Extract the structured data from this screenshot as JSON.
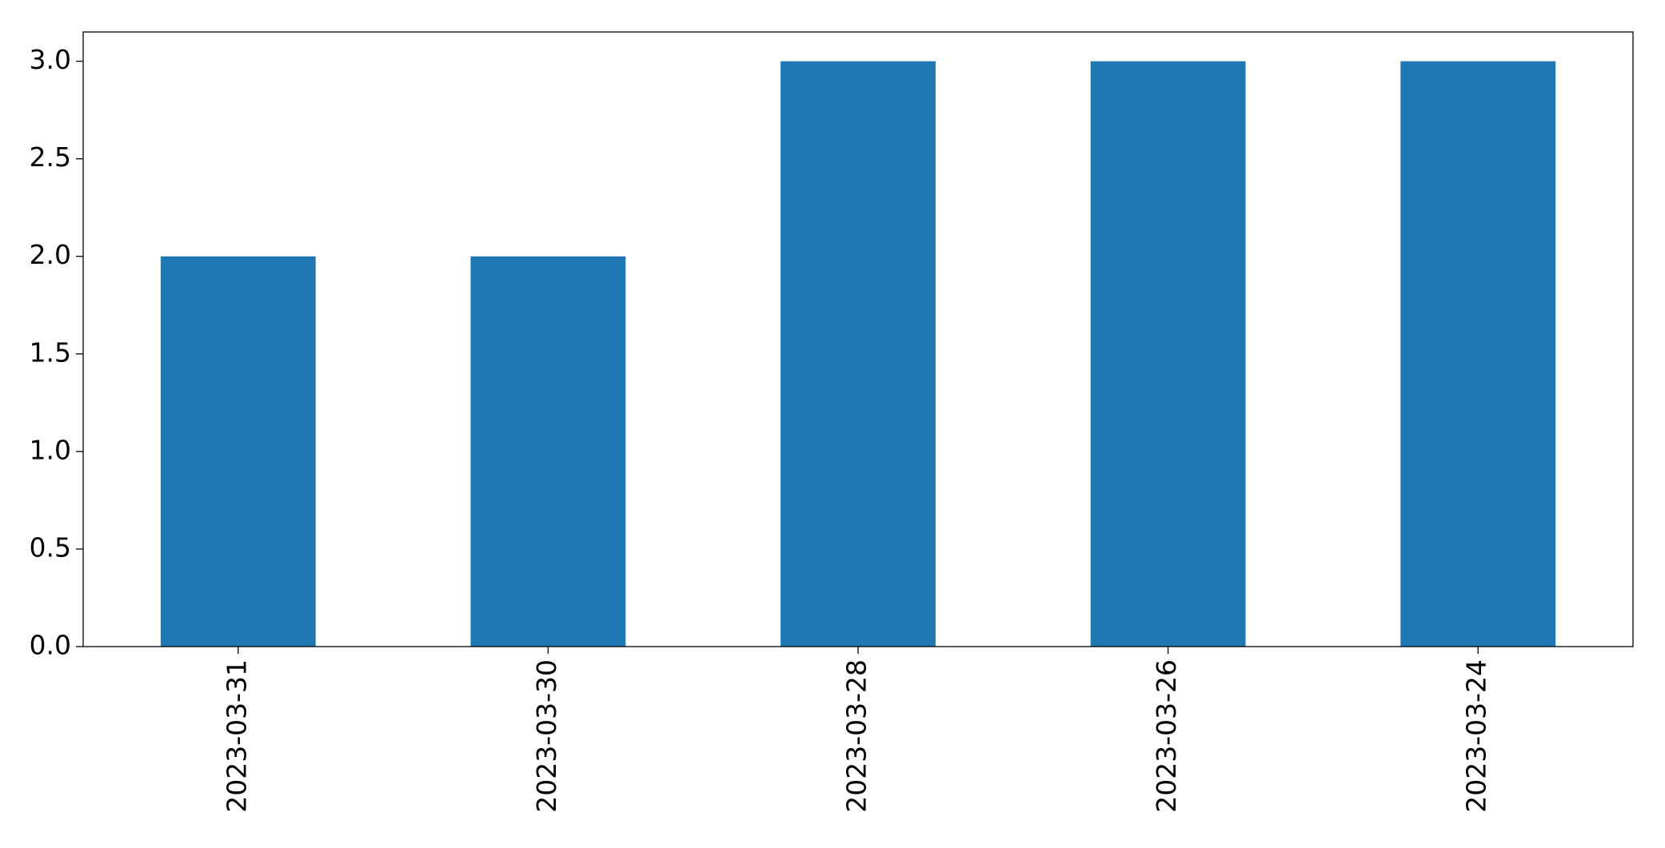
{
  "chart_data": {
    "type": "bar",
    "categories": [
      "2023-03-31",
      "2023-03-30",
      "2023-03-28",
      "2023-03-26",
      "2023-03-24"
    ],
    "values": [
      2,
      2,
      3,
      3,
      3
    ],
    "color": "#1f77b4",
    "ylim": [
      0,
      3.15
    ],
    "yticks": [
      {
        "value": 0,
        "label": "0.0"
      },
      {
        "value": 0.5,
        "label": "0.5"
      },
      {
        "value": 1,
        "label": "1.0"
      },
      {
        "value": 1.5,
        "label": "1.5"
      },
      {
        "value": 2,
        "label": "2.0"
      },
      {
        "value": 2.5,
        "label": "2.5"
      },
      {
        "value": 3,
        "label": "3.0"
      }
    ],
    "grid": false
  }
}
